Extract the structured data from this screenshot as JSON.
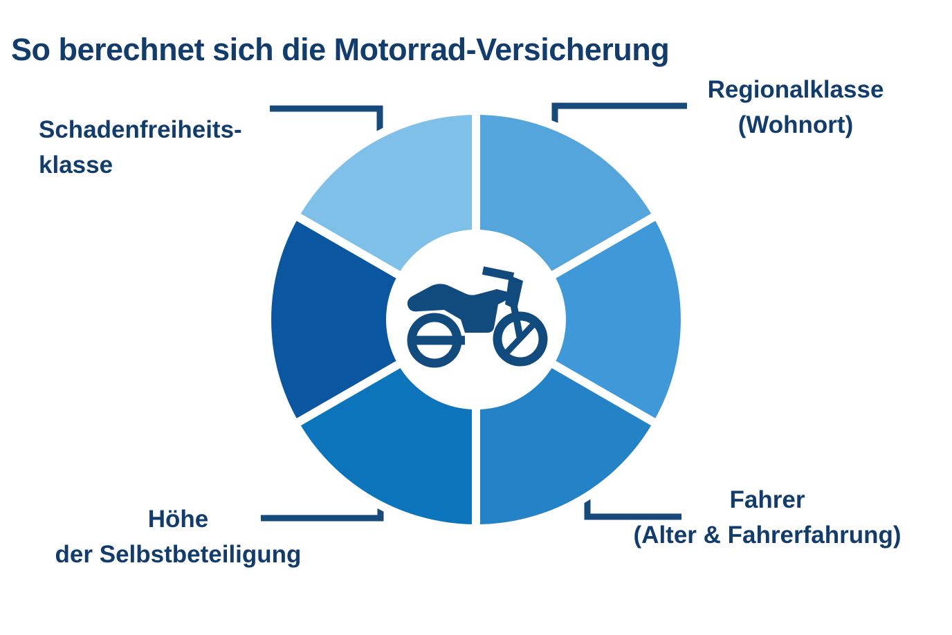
{
  "title": "So berechnet sich die Motorrad-Versicherung",
  "colors": {
    "text": "#123c6b",
    "connector": "#17497b",
    "icon": "#114a7d",
    "background": "#ffffff",
    "donut_hole": "#ffffff"
  },
  "chart_data": {
    "type": "pie",
    "style": "donut",
    "title": "So berechnet sich die Motorrad-Versicherung",
    "center_icon": "motorcycle",
    "legend_position": "callouts",
    "start_angle_deg": -90,
    "segments": [
      {
        "position": "top-right",
        "value": 1,
        "color": "#54a5dc",
        "label": "Regionalklasse (Wohnort)"
      },
      {
        "position": "right",
        "value": 1,
        "color": "#3f99d8",
        "label": ""
      },
      {
        "position": "bottom-right",
        "value": 1,
        "color": "#2383c6",
        "label": "Fahrer (Alter & Fahrerfahrung)"
      },
      {
        "position": "bottom-left",
        "value": 1,
        "color": "#0b74bb",
        "label": "Höhe der Selbstbeteiligung"
      },
      {
        "position": "left",
        "value": 1,
        "color": "#0a56a0",
        "label": ""
      },
      {
        "position": "top-left",
        "value": 1,
        "color": "#7fc0e9",
        "label": "Schadenfreiheitsklasse"
      }
    ]
  },
  "callouts": {
    "top_left": {
      "line1": "Schadenfreiheits-",
      "line2": "klasse"
    },
    "top_right": {
      "line1": "Regionalklasse",
      "line2": "(Wohnort)"
    },
    "bottom_left": {
      "line1": "Höhe",
      "line2": "der Selbstbeteiligung"
    },
    "bottom_right": {
      "line1": "Fahrer",
      "line2": "(Alter & Fahrerfahrung)"
    }
  }
}
